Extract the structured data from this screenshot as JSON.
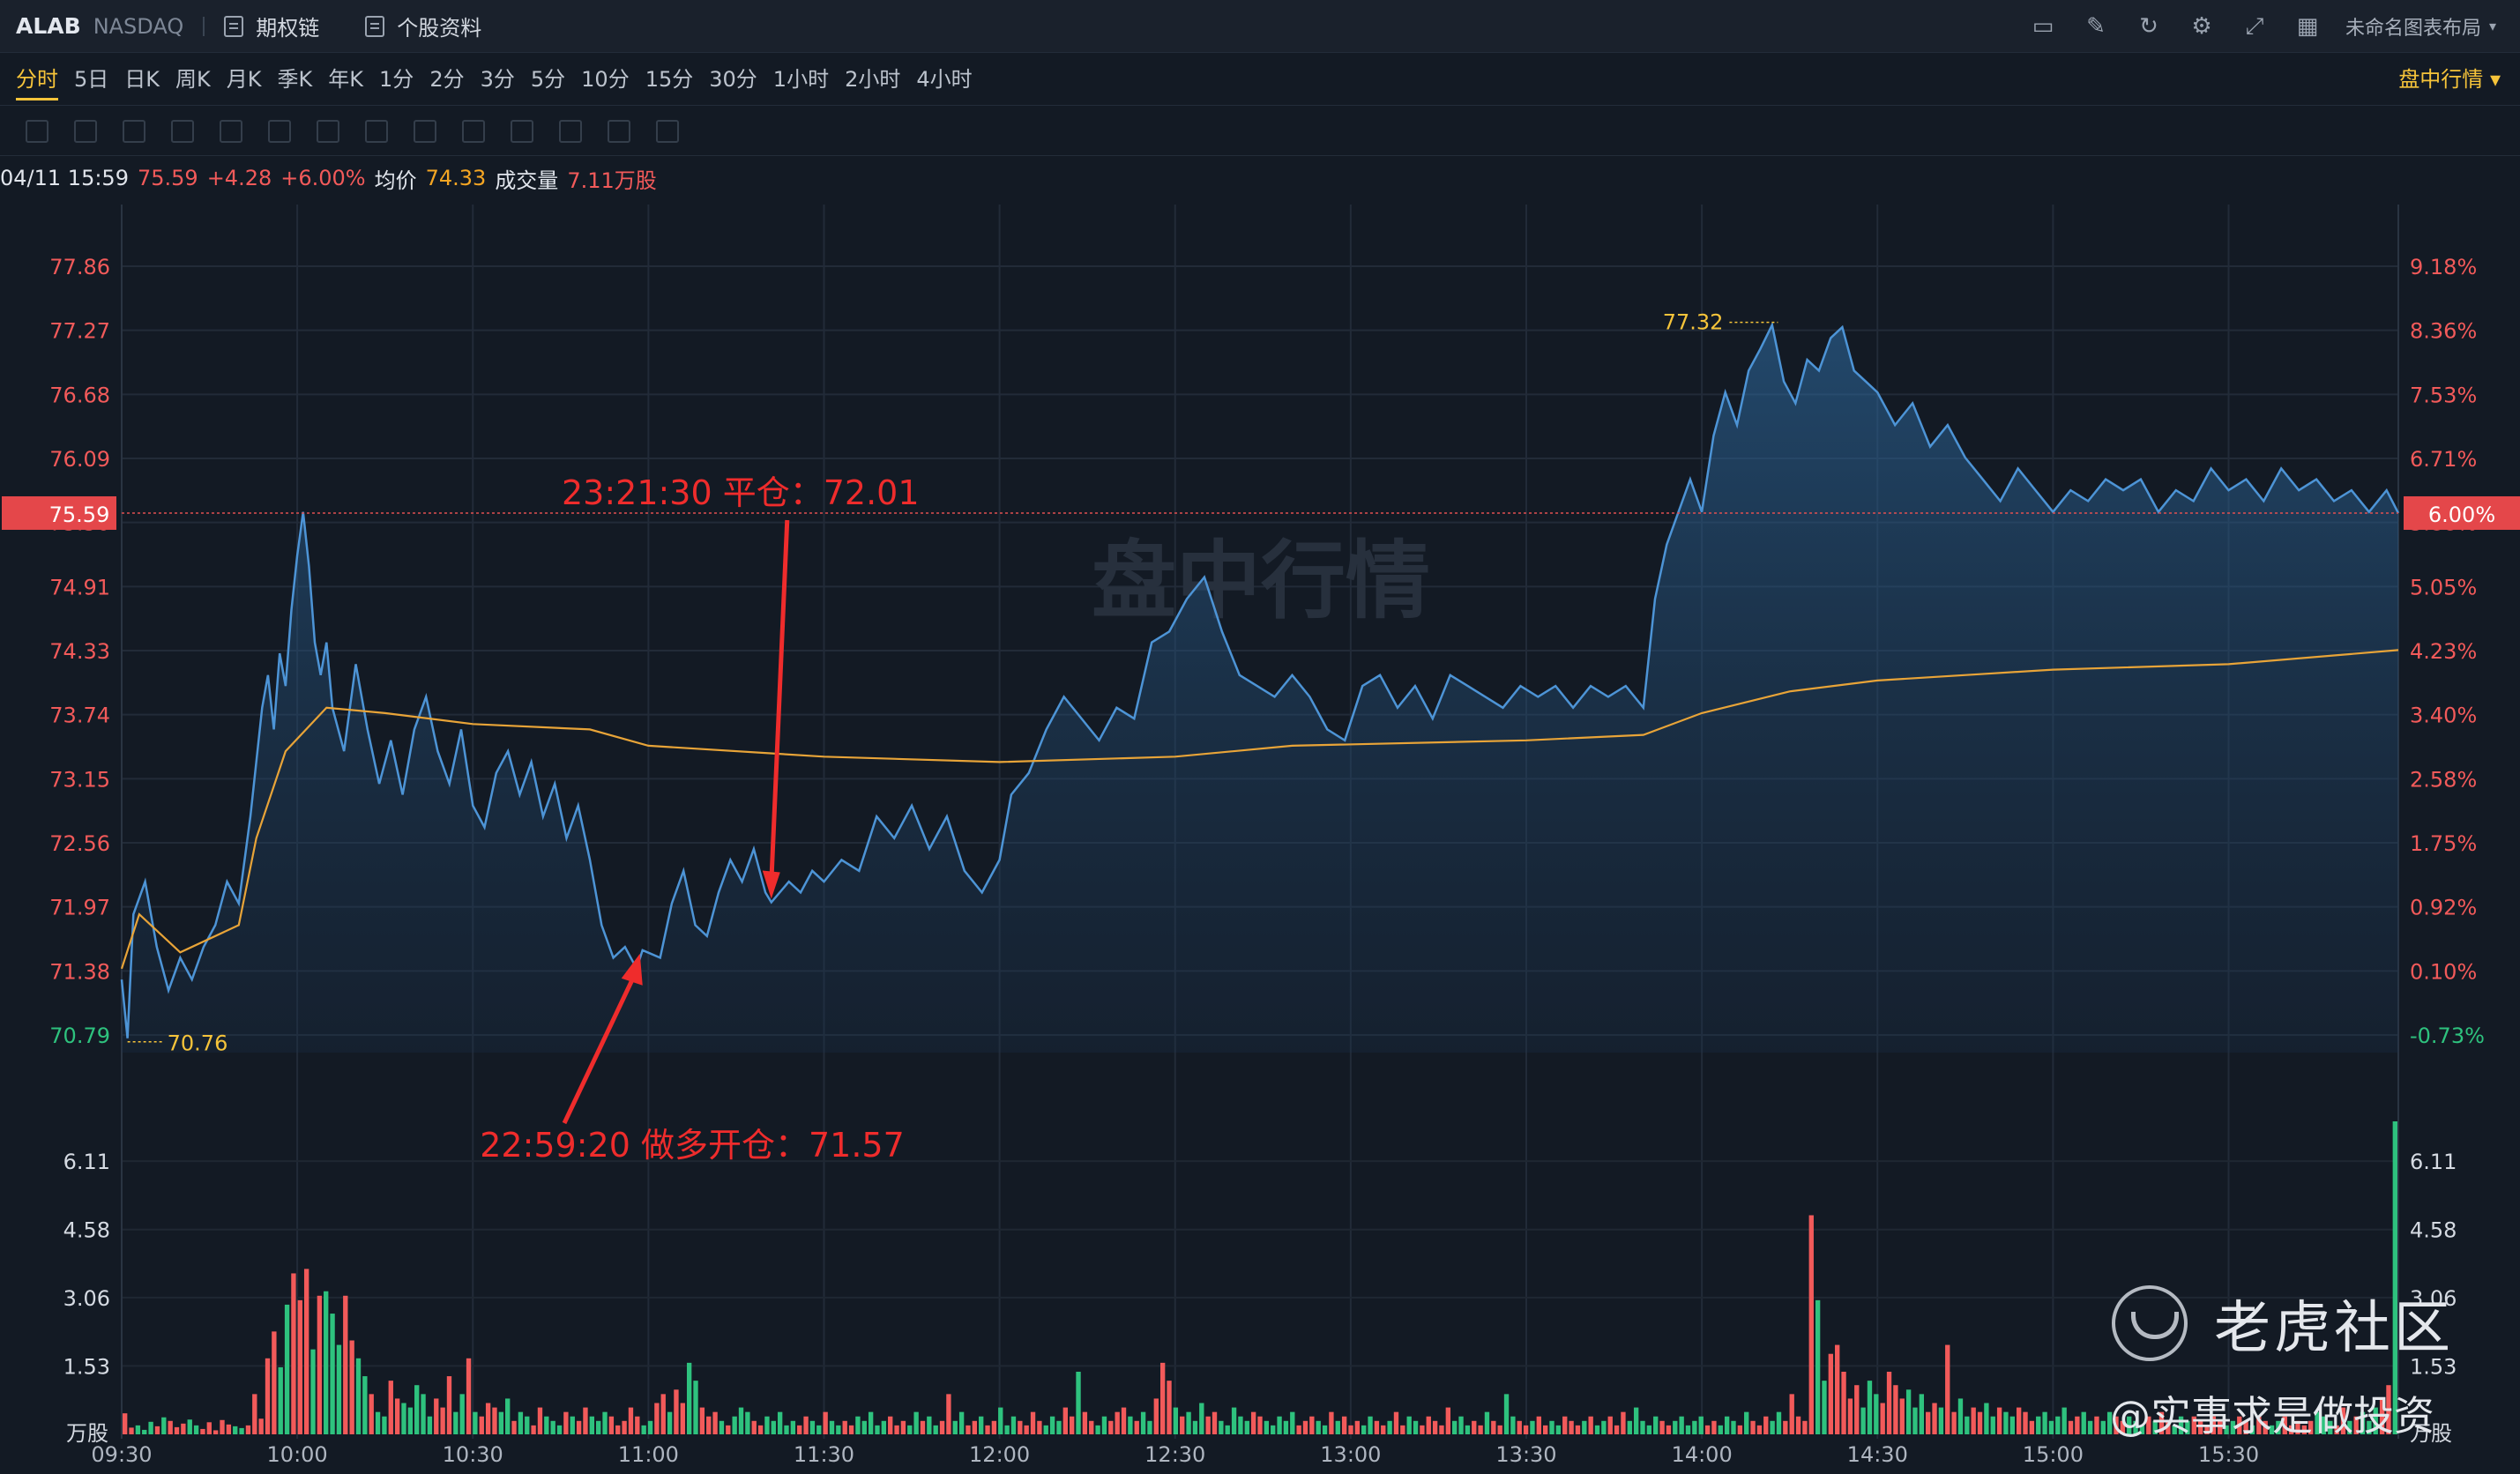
{
  "header": {
    "symbol": "ALAB",
    "exchange": "NASDAQ",
    "links": [
      "期权链",
      "个股资料"
    ],
    "layout_name": "未命名图表布局"
  },
  "periods": [
    "分时",
    "5日",
    "日K",
    "周K",
    "月K",
    "季K",
    "年K",
    "1分",
    "2分",
    "3分",
    "5分",
    "10分",
    "15分",
    "30分",
    "1小时",
    "2小时",
    "4小时"
  ],
  "active_period": "分时",
  "live_label": "盘中行情",
  "info": {
    "time": "04/11 15:59",
    "price": "75.59",
    "change": "+4.28",
    "change_pct": "+6.00%",
    "avg_label": "均价",
    "avg": "74.33",
    "vol_label": "成交量",
    "vol": "7.11万股"
  },
  "chart_data": {
    "type": "area",
    "ylim": [
      70.79,
      77.86
    ],
    "price_ticks": [
      "77.86",
      "77.27",
      "76.68",
      "76.09",
      "75.50",
      "74.91",
      "74.33",
      "73.74",
      "73.15",
      "72.56",
      "71.97",
      "71.38",
      "70.79"
    ],
    "pct_ticks": [
      "9.18%",
      "8.36%",
      "7.53%",
      "6.71%",
      "5.88%",
      "5.05%",
      "4.23%",
      "3.40%",
      "2.58%",
      "1.75%",
      "0.92%",
      "0.10%",
      "-0.73%"
    ],
    "time_ticks": [
      "09:30",
      "10:00",
      "10:30",
      "11:00",
      "11:30",
      "12:00",
      "12:30",
      "13:00",
      "13:30",
      "14:00",
      "14:30",
      "15:00",
      "15:30"
    ],
    "current_price": "75.59",
    "current_pct": "6.00%",
    "high": {
      "time": "14:13",
      "value": "77.32"
    },
    "low": {
      "time": "09:31",
      "value": "70.76"
    },
    "volume_ticks": [
      "6.11",
      "4.58",
      "3.06",
      "1.53"
    ],
    "volume_unit": "万股",
    "watermark": "盘中行情",
    "price_points": [
      [
        "09:30",
        71.3
      ],
      [
        "09:31",
        70.76
      ],
      [
        "09:32",
        71.9
      ],
      [
        "09:34",
        72.2
      ],
      [
        "09:36",
        71.6
      ],
      [
        "09:38",
        71.2
      ],
      [
        "09:40",
        71.5
      ],
      [
        "09:42",
        71.3
      ],
      [
        "09:44",
        71.6
      ],
      [
        "09:46",
        71.8
      ],
      [
        "09:48",
        72.2
      ],
      [
        "09:50",
        72.0
      ],
      [
        "09:52",
        72.8
      ],
      [
        "09:54",
        73.8
      ],
      [
        "09:55",
        74.1
      ],
      [
        "09:56",
        73.6
      ],
      [
        "09:57",
        74.3
      ],
      [
        "09:58",
        74.0
      ],
      [
        "09:59",
        74.7
      ],
      [
        "10:00",
        75.2
      ],
      [
        "10:01",
        75.6
      ],
      [
        "10:02",
        75.1
      ],
      [
        "10:03",
        74.4
      ],
      [
        "10:04",
        74.1
      ],
      [
        "10:05",
        74.4
      ],
      [
        "10:06",
        73.8
      ],
      [
        "10:08",
        73.4
      ],
      [
        "10:10",
        74.2
      ],
      [
        "10:12",
        73.6
      ],
      [
        "10:14",
        73.1
      ],
      [
        "10:16",
        73.5
      ],
      [
        "10:18",
        73.0
      ],
      [
        "10:20",
        73.6
      ],
      [
        "10:22",
        73.9
      ],
      [
        "10:24",
        73.4
      ],
      [
        "10:26",
        73.1
      ],
      [
        "10:28",
        73.6
      ],
      [
        "10:30",
        72.9
      ],
      [
        "10:32",
        72.7
      ],
      [
        "10:34",
        73.2
      ],
      [
        "10:36",
        73.4
      ],
      [
        "10:38",
        73.0
      ],
      [
        "10:40",
        73.3
      ],
      [
        "10:42",
        72.8
      ],
      [
        "10:44",
        73.1
      ],
      [
        "10:46",
        72.6
      ],
      [
        "10:48",
        72.9
      ],
      [
        "10:50",
        72.4
      ],
      [
        "10:52",
        71.8
      ],
      [
        "10:54",
        71.5
      ],
      [
        "10:56",
        71.6
      ],
      [
        "10:58",
        71.4
      ],
      [
        "10:59",
        71.57
      ],
      [
        "11:02",
        71.5
      ],
      [
        "11:04",
        72.0
      ],
      [
        "11:06",
        72.3
      ],
      [
        "11:08",
        71.8
      ],
      [
        "11:10",
        71.7
      ],
      [
        "11:12",
        72.1
      ],
      [
        "11:14",
        72.4
      ],
      [
        "11:16",
        72.2
      ],
      [
        "11:18",
        72.5
      ],
      [
        "11:20",
        72.1
      ],
      [
        "11:21",
        72.01
      ],
      [
        "11:24",
        72.2
      ],
      [
        "11:26",
        72.1
      ],
      [
        "11:28",
        72.3
      ],
      [
        "11:30",
        72.2
      ],
      [
        "11:33",
        72.4
      ],
      [
        "11:36",
        72.3
      ],
      [
        "11:39",
        72.8
      ],
      [
        "11:42",
        72.6
      ],
      [
        "11:45",
        72.9
      ],
      [
        "11:48",
        72.5
      ],
      [
        "11:51",
        72.8
      ],
      [
        "11:54",
        72.3
      ],
      [
        "11:57",
        72.1
      ],
      [
        "12:00",
        72.4
      ],
      [
        "12:02",
        73.0
      ],
      [
        "12:05",
        73.2
      ],
      [
        "12:08",
        73.6
      ],
      [
        "12:11",
        73.9
      ],
      [
        "12:14",
        73.7
      ],
      [
        "12:17",
        73.5
      ],
      [
        "12:20",
        73.8
      ],
      [
        "12:23",
        73.7
      ],
      [
        "12:26",
        74.4
      ],
      [
        "12:29",
        74.5
      ],
      [
        "12:32",
        74.8
      ],
      [
        "12:35",
        75.0
      ],
      [
        "12:38",
        74.5
      ],
      [
        "12:41",
        74.1
      ],
      [
        "12:44",
        74.0
      ],
      [
        "12:47",
        73.9
      ],
      [
        "12:50",
        74.1
      ],
      [
        "12:53",
        73.9
      ],
      [
        "12:56",
        73.6
      ],
      [
        "12:59",
        73.5
      ],
      [
        "13:02",
        74.0
      ],
      [
        "13:05",
        74.1
      ],
      [
        "13:08",
        73.8
      ],
      [
        "13:11",
        74.0
      ],
      [
        "13:14",
        73.7
      ],
      [
        "13:17",
        74.1
      ],
      [
        "13:20",
        74.0
      ],
      [
        "13:23",
        73.9
      ],
      [
        "13:26",
        73.8
      ],
      [
        "13:29",
        74.0
      ],
      [
        "13:32",
        73.9
      ],
      [
        "13:35",
        74.0
      ],
      [
        "13:38",
        73.8
      ],
      [
        "13:41",
        74.0
      ],
      [
        "13:44",
        73.9
      ],
      [
        "13:47",
        74.0
      ],
      [
        "13:50",
        73.8
      ],
      [
        "13:52",
        74.8
      ],
      [
        "13:54",
        75.3
      ],
      [
        "13:56",
        75.6
      ],
      [
        "13:58",
        75.9
      ],
      [
        "14:00",
        75.6
      ],
      [
        "14:02",
        76.3
      ],
      [
        "14:04",
        76.7
      ],
      [
        "14:06",
        76.4
      ],
      [
        "14:08",
        76.9
      ],
      [
        "14:10",
        77.1
      ],
      [
        "14:12",
        77.32
      ],
      [
        "14:14",
        76.8
      ],
      [
        "14:16",
        76.6
      ],
      [
        "14:18",
        77.0
      ],
      [
        "14:20",
        76.9
      ],
      [
        "14:22",
        77.2
      ],
      [
        "14:24",
        77.3
      ],
      [
        "14:26",
        76.9
      ],
      [
        "14:28",
        76.8
      ],
      [
        "14:30",
        76.7
      ],
      [
        "14:33",
        76.4
      ],
      [
        "14:36",
        76.6
      ],
      [
        "14:39",
        76.2
      ],
      [
        "14:42",
        76.4
      ],
      [
        "14:45",
        76.1
      ],
      [
        "14:48",
        75.9
      ],
      [
        "14:51",
        75.7
      ],
      [
        "14:54",
        76.0
      ],
      [
        "14:57",
        75.8
      ],
      [
        "15:00",
        75.6
      ],
      [
        "15:03",
        75.8
      ],
      [
        "15:06",
        75.7
      ],
      [
        "15:09",
        75.9
      ],
      [
        "15:12",
        75.8
      ],
      [
        "15:15",
        75.9
      ],
      [
        "15:18",
        75.6
      ],
      [
        "15:21",
        75.8
      ],
      [
        "15:24",
        75.7
      ],
      [
        "15:27",
        76.0
      ],
      [
        "15:30",
        75.8
      ],
      [
        "15:33",
        75.9
      ],
      [
        "15:36",
        75.7
      ],
      [
        "15:39",
        76.0
      ],
      [
        "15:42",
        75.8
      ],
      [
        "15:45",
        75.9
      ],
      [
        "15:48",
        75.7
      ],
      [
        "15:51",
        75.8
      ],
      [
        "15:54",
        75.6
      ],
      [
        "15:57",
        75.8
      ],
      [
        "15:59",
        75.59
      ]
    ],
    "avg_points": [
      [
        "09:30",
        71.4
      ],
      [
        "09:33",
        71.9
      ],
      [
        "09:40",
        71.55
      ],
      [
        "09:50",
        71.8
      ],
      [
        "09:53",
        72.6
      ],
      [
        "09:58",
        73.4
      ],
      [
        "10:05",
        73.8
      ],
      [
        "10:15",
        73.75
      ],
      [
        "10:30",
        73.65
      ],
      [
        "10:50",
        73.6
      ],
      [
        "11:00",
        73.45
      ],
      [
        "11:30",
        73.35
      ],
      [
        "12:00",
        73.3
      ],
      [
        "12:30",
        73.35
      ],
      [
        "12:50",
        73.45
      ],
      [
        "13:30",
        73.5
      ],
      [
        "13:50",
        73.55
      ],
      [
        "14:00",
        73.75
      ],
      [
        "14:15",
        73.95
      ],
      [
        "14:30",
        74.05
      ],
      [
        "15:00",
        74.15
      ],
      [
        "15:30",
        74.2
      ],
      [
        "15:59",
        74.33
      ]
    ],
    "volume": [
      0.47,
      0.15,
      0.2,
      0.1,
      0.28,
      0.18,
      0.38,
      0.3,
      0.16,
      0.24,
      0.33,
      0.2,
      0.12,
      0.27,
      0.09,
      0.32,
      0.22,
      0.18,
      0.14,
      0.2,
      0.9,
      0.35,
      1.7,
      2.3,
      1.5,
      2.9,
      3.6,
      3.0,
      3.7,
      1.9,
      3.1,
      3.2,
      2.7,
      2.0,
      3.1,
      2.1,
      1.7,
      1.3,
      0.9,
      0.5,
      0.4,
      1.2,
      0.8,
      0.7,
      0.6,
      1.1,
      0.9,
      0.4,
      0.8,
      0.6,
      1.3,
      0.5,
      0.9,
      1.7,
      0.5,
      0.4,
      0.7,
      0.6,
      0.5,
      0.8,
      0.3,
      0.5,
      0.4,
      0.2,
      0.6,
      0.4,
      0.3,
      0.2,
      0.5,
      0.4,
      0.3,
      0.6,
      0.4,
      0.3,
      0.5,
      0.4,
      0.2,
      0.3,
      0.6,
      0.4,
      0.2,
      0.3,
      0.7,
      0.9,
      0.5,
      1.0,
      0.7,
      1.6,
      1.2,
      0.6,
      0.4,
      0.5,
      0.3,
      0.2,
      0.4,
      0.6,
      0.5,
      0.3,
      0.2,
      0.4,
      0.3,
      0.5,
      0.2,
      0.3,
      0.2,
      0.4,
      0.3,
      0.2,
      0.5,
      0.3,
      0.2,
      0.3,
      0.2,
      0.4,
      0.3,
      0.5,
      0.2,
      0.3,
      0.4,
      0.2,
      0.3,
      0.2,
      0.5,
      0.3,
      0.4,
      0.2,
      0.3,
      0.9,
      0.3,
      0.5,
      0.2,
      0.3,
      0.4,
      0.2,
      0.3,
      0.6,
      0.2,
      0.4,
      0.3,
      0.2,
      0.5,
      0.3,
      0.2,
      0.4,
      0.3,
      0.6,
      0.4,
      1.4,
      0.5,
      0.3,
      0.2,
      0.4,
      0.3,
      0.5,
      0.6,
      0.4,
      0.3,
      0.5,
      0.3,
      0.8,
      1.6,
      1.2,
      0.6,
      0.4,
      0.5,
      0.3,
      0.7,
      0.4,
      0.5,
      0.3,
      0.2,
      0.6,
      0.4,
      0.3,
      0.5,
      0.4,
      0.3,
      0.2,
      0.4,
      0.3,
      0.5,
      0.2,
      0.3,
      0.4,
      0.3,
      0.2,
      0.5,
      0.3,
      0.4,
      0.2,
      0.3,
      0.2,
      0.4,
      0.3,
      0.2,
      0.3,
      0.5,
      0.2,
      0.4,
      0.3,
      0.2,
      0.4,
      0.3,
      0.2,
      0.6,
      0.3,
      0.4,
      0.2,
      0.3,
      0.2,
      0.5,
      0.3,
      0.2,
      0.9,
      0.4,
      0.3,
      0.2,
      0.3,
      0.4,
      0.2,
      0.3,
      0.2,
      0.4,
      0.3,
      0.2,
      0.3,
      0.4,
      0.2,
      0.3,
      0.4,
      0.2,
      0.5,
      0.3,
      0.6,
      0.3,
      0.2,
      0.4,
      0.3,
      0.2,
      0.3,
      0.4,
      0.2,
      0.3,
      0.4,
      0.2,
      0.3,
      0.2,
      0.4,
      0.3,
      0.2,
      0.5,
      0.3,
      0.2,
      0.4,
      0.3,
      0.5,
      0.3,
      0.9,
      0.4,
      0.3,
      4.9,
      3.0,
      1.2,
      1.8,
      2.0,
      1.4,
      0.8,
      1.1,
      0.6,
      1.2,
      0.9,
      0.7,
      1.4,
      1.1,
      0.8,
      1.0,
      0.6,
      0.9,
      0.5,
      0.7,
      0.6,
      2.0,
      0.5,
      0.8,
      0.4,
      0.6,
      0.5,
      0.7,
      0.4,
      0.6,
      0.5,
      0.4,
      0.6,
      0.5,
      0.3,
      0.4,
      0.5,
      0.3,
      0.4,
      0.6,
      0.3,
      0.4,
      0.5,
      0.3,
      0.4,
      0.3,
      0.5,
      0.4,
      0.3,
      0.4,
      0.3,
      0.2,
      0.4,
      0.3,
      0.5,
      0.3,
      0.2,
      0.4,
      0.3,
      0.4,
      0.3,
      0.2,
      0.4,
      0.3,
      0.2,
      0.3,
      0.4,
      0.3,
      0.2,
      0.4,
      0.3,
      0.2,
      0.3,
      0.4,
      0.2,
      0.3,
      0.2,
      0.3,
      0.5,
      0.4,
      0.3,
      0.2,
      0.6,
      0.3,
      0.4,
      0.5,
      0.3,
      0.6,
      0.8,
      1.1,
      7.0
    ],
    "annotations": [
      {
        "text": "23:21:30 平仓：72.01",
        "time": "11:21",
        "value": 72.01
      },
      {
        "text": "22:59:20 做多开仓：71.57",
        "time": "10:59",
        "value": 71.57
      }
    ]
  },
  "brand": {
    "name": "老虎社区",
    "handle": "@实事求是做投资"
  },
  "colors": {
    "accent": "#f6c43a",
    "up": "#f25a5a",
    "down": "#2ec27e",
    "price_line": "#4d94d6",
    "avg_line": "#e8a438",
    "bg": "#131a24"
  }
}
